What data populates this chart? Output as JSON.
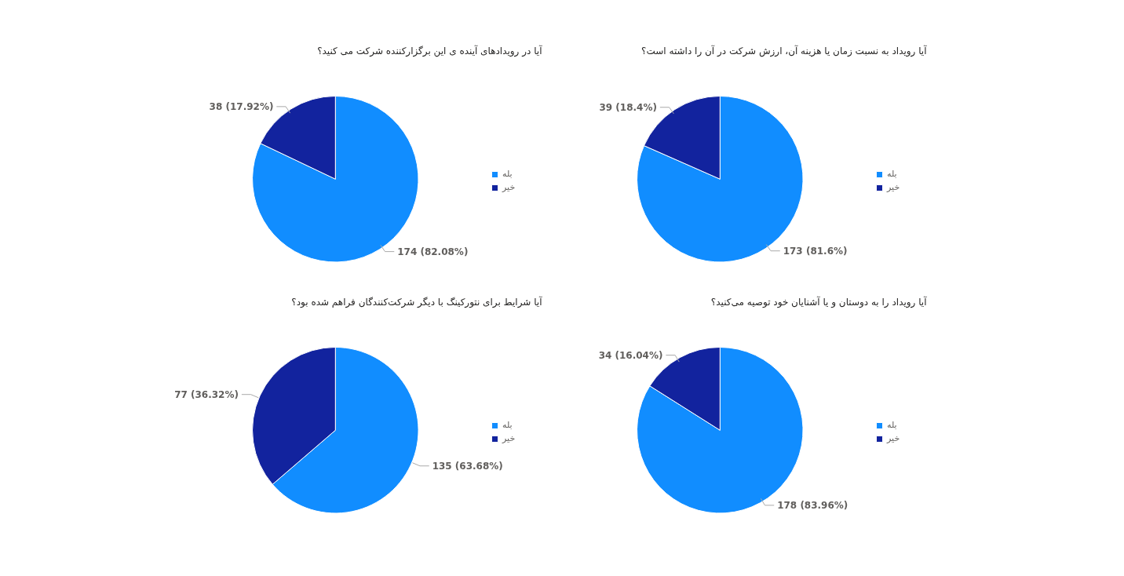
{
  "chart_data": [
    {
      "type": "pie",
      "title": "آیا در رویدادهای آینده ی این برگزارکننده شرکت می کنید؟",
      "categories": [
        "بله",
        "خیر"
      ],
      "values": [
        174,
        38
      ],
      "colors": [
        "#118dff",
        "#12239e"
      ],
      "value_labels": [
        "174 (82.08%)",
        "38 (17.92%)"
      ],
      "legend": "right"
    },
    {
      "type": "pie",
      "title": "آیا رویداد به نسبت زمان یا هزینه آن، ارزش شرکت در آن را داشته است؟",
      "categories": [
        "بله",
        "خیر"
      ],
      "values": [
        173,
        39
      ],
      "colors": [
        "#118dff",
        "#12239e"
      ],
      "value_labels": [
        "173 (81.6%)",
        "39 (18.4%)"
      ],
      "legend": "right"
    },
    {
      "type": "pie",
      "title": "آیا شرایط برای نتورکینگ با دیگر شرکت‌کنندگان فراهم شده بود؟",
      "categories": [
        "بله",
        "خیر"
      ],
      "values": [
        135,
        77
      ],
      "colors": [
        "#118dff",
        "#12239e"
      ],
      "value_labels": [
        "135 (63.68%)",
        "77 (36.32%)"
      ],
      "legend": "right"
    },
    {
      "type": "pie",
      "title": "آیا رویداد را به دوستان و یا آشنایان خود توصیه می‌کنید؟",
      "categories": [
        "بله",
        "خیر"
      ],
      "values": [
        178,
        34
      ],
      "colors": [
        "#118dff",
        "#12239e"
      ],
      "value_labels": [
        "178 (83.96%)",
        "34 (16.04%)"
      ],
      "legend": "right"
    }
  ]
}
